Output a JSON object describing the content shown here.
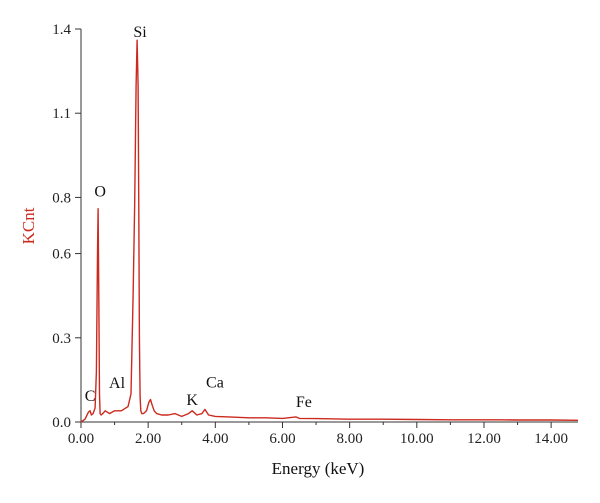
{
  "chart_data": {
    "type": "line",
    "title": "",
    "xlabel": "Energy (keV)",
    "ylabel": "KCnt",
    "xlim": [
      0,
      14.8
    ],
    "ylim": [
      0,
      1.4
    ],
    "grid": false,
    "legend": "none",
    "line_color": "#cc2a1e",
    "ylabel_color": "#cc2a1e",
    "axis_color": "#333333",
    "x_ticks": [
      {
        "value": 0,
        "label": "0.00"
      },
      {
        "value": 2,
        "label": "2.00"
      },
      {
        "value": 4,
        "label": "4.00"
      },
      {
        "value": 6,
        "label": "6.00"
      },
      {
        "value": 8,
        "label": "8.00"
      },
      {
        "value": 10,
        "label": "10.00"
      },
      {
        "value": 12,
        "label": "12.00"
      },
      {
        "value": 14,
        "label": "14.00"
      }
    ],
    "y_ticks": [
      {
        "value": 0,
        "label": "0.0"
      },
      {
        "value": 0.3,
        "label": "0.3"
      },
      {
        "value": 0.6,
        "label": "0.6"
      },
      {
        "value": 0.8,
        "label": "0.8"
      },
      {
        "value": 1.1,
        "label": "1.1"
      },
      {
        "value": 1.4,
        "label": "1.4"
      }
    ],
    "series": [
      {
        "x": [
          0.0,
          0.12,
          0.22,
          0.27,
          0.31,
          0.36,
          0.42,
          0.46,
          0.49,
          0.51,
          0.53,
          0.55,
          0.57,
          0.6,
          0.65,
          0.72,
          0.85,
          1.0,
          1.2,
          1.4,
          1.49,
          1.55,
          1.6,
          1.64,
          1.67,
          1.7,
          1.72,
          1.74,
          1.76,
          1.78,
          1.81,
          1.86,
          1.95,
          2.02,
          2.07,
          2.12,
          2.18,
          2.25,
          2.4,
          2.6,
          2.8,
          3.0,
          3.2,
          3.31,
          3.45,
          3.6,
          3.69,
          3.8,
          4.0,
          4.4,
          5.0,
          5.5,
          6.0,
          6.4,
          6.5,
          7.0,
          8.0,
          9.0,
          10.0,
          11.0,
          11.5,
          12.0,
          12.5,
          13.0,
          14.0,
          14.8
        ],
        "y": [
          0.0,
          0.01,
          0.035,
          0.04,
          0.025,
          0.03,
          0.05,
          0.18,
          0.6,
          0.76,
          0.45,
          0.1,
          0.03,
          0.025,
          0.03,
          0.04,
          0.03,
          0.04,
          0.04,
          0.055,
          0.1,
          0.45,
          0.78,
          1.2,
          1.36,
          1.2,
          0.75,
          0.3,
          0.09,
          0.04,
          0.03,
          0.03,
          0.04,
          0.07,
          0.08,
          0.06,
          0.04,
          0.03,
          0.025,
          0.025,
          0.03,
          0.02,
          0.03,
          0.04,
          0.025,
          0.03,
          0.045,
          0.025,
          0.02,
          0.018,
          0.015,
          0.015,
          0.013,
          0.018,
          0.013,
          0.012,
          0.01,
          0.01,
          0.009,
          0.008,
          0.008,
          0.008,
          0.008,
          0.007,
          0.007,
          0.006
        ]
      }
    ],
    "annotations": [
      {
        "label": "C",
        "x": 0.27,
        "y": 0.04
      },
      {
        "label": "O",
        "x": 0.51,
        "y": 0.76
      },
      {
        "label": "Al",
        "x": 1.49,
        "y": 0.1
      },
      {
        "label": "Si",
        "x": 1.67,
        "y": 1.36
      },
      {
        "label": "K",
        "x": 3.31,
        "y": 0.04
      },
      {
        "label": "Ca",
        "x": 3.69,
        "y": 0.045
      },
      {
        "label": "Fe",
        "x": 6.4,
        "y": 0.018
      }
    ]
  }
}
